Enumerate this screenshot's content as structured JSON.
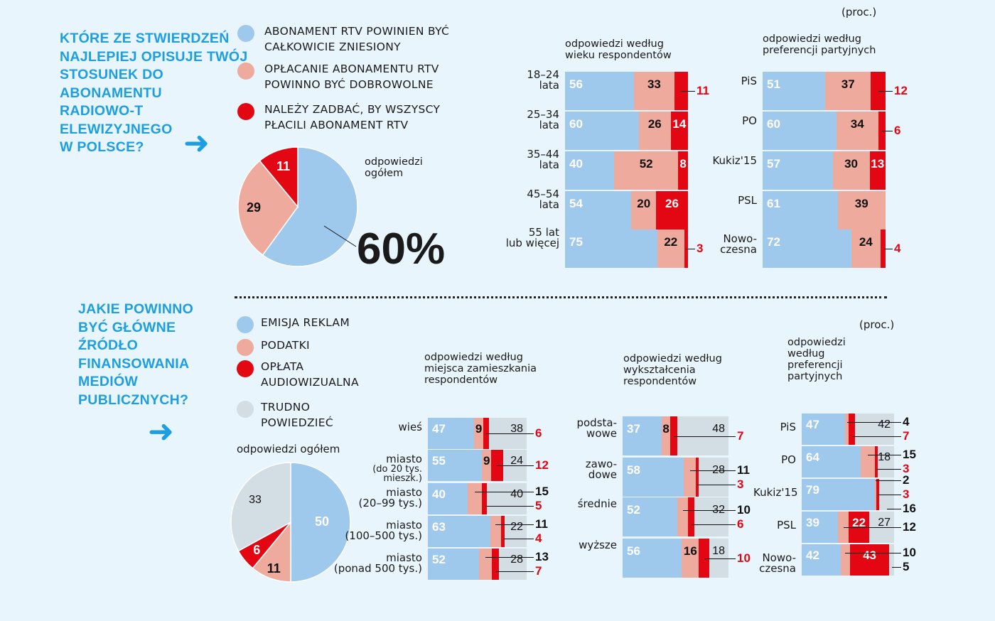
{
  "colors": {
    "blue": "#9fc9ec",
    "pink": "#eeaa9c",
    "red": "#e30613",
    "gray": "#d3dde4",
    "accent": "#1d9ee0"
  },
  "section1": {
    "question": [
      "KTÓRE ZE STWIERDZEŃ",
      "NAJLEPIEJ OPISUJE TWÓJ",
      "STOSUNEK DO",
      "ABONAMENTU",
      "RADIOWO-T",
      "ELEWIZYJNEGO",
      "W POLSCE?"
    ],
    "legend": [
      {
        "lines": [
          "ABONAMENT RTV POWINIEN BYĆ",
          "CAŁKOWICIE ZNIESIONY"
        ],
        "color": "blue"
      },
      {
        "lines": [
          "OPŁACANIE ABONAMENTU RTV",
          "POWINNO BYĆ DOBROWOLNE"
        ],
        "color": "pink"
      },
      {
        "lines": [
          "NALEŻY ZADBAĆ, BY WSZYSCY",
          "PŁACILI ABONAMENT RTV"
        ],
        "color": "red"
      }
    ],
    "unit": "(proc.)",
    "pie_label": [
      "odpowiedzi",
      "ogółem"
    ],
    "big_value": "60%"
  },
  "section2": {
    "question": [
      "JAKIE POWINNO",
      "BYĆ GŁÓWNE",
      "ŹRÓDŁO",
      "FINANSOWANIA",
      "MEDIÓW",
      "PUBLICZNYCH?"
    ],
    "legend": [
      {
        "lines": [
          "EMISJA REKLAM"
        ],
        "color": "blue"
      },
      {
        "lines": [
          "PODATKI"
        ],
        "color": "pink"
      },
      {
        "lines": [
          "OPŁATA",
          "AUDIOWIZUALNA"
        ],
        "color": "red"
      },
      {
        "lines": [
          "TRUDNO",
          "POWIEDZIEĆ"
        ],
        "color": "gray"
      }
    ],
    "unit": "(proc.)",
    "pie_label": "odpowiedzi ogółem"
  },
  "chart_data": [
    {
      "id": "pie1",
      "type": "pie",
      "title": "odpowiedzi ogółem",
      "categories": [
        "ABONAMENT RTV POWINIEN BYĆ CAŁKOWICIE ZNIESIONY",
        "OPŁACANIE ABONAMENTU RTV POWINNO BYĆ DOBROWOLNE",
        "NALEŻY ZADBAĆ, BY WSZYSCY PŁACILI ABONAMENT RTV"
      ],
      "values": [
        60,
        29,
        11
      ],
      "colors": [
        "blue",
        "pink",
        "red"
      ]
    },
    {
      "id": "age",
      "type": "bar",
      "stacked": true,
      "orientation": "horizontal",
      "title": [
        "odpowiedzi według",
        "wieku respondentów"
      ],
      "categories": [
        [
          "18–24",
          "lata"
        ],
        [
          "25–34",
          "lata"
        ],
        [
          "35–44",
          "lata"
        ],
        [
          "45–54",
          "lata"
        ],
        [
          "55 lat",
          "lub więcej"
        ]
      ],
      "series": [
        {
          "color": "blue",
          "values": [
            56,
            60,
            40,
            54,
            75
          ]
        },
        {
          "color": "pink",
          "values": [
            33,
            26,
            52,
            20,
            22
          ]
        },
        {
          "color": "red",
          "values": [
            11,
            14,
            8,
            26,
            3
          ]
        }
      ]
    },
    {
      "id": "party1",
      "type": "bar",
      "stacked": true,
      "orientation": "horizontal",
      "title": [
        "odpowiedzi według",
        "preferencji partyjnych"
      ],
      "categories": [
        [
          "PiS"
        ],
        [
          "PO"
        ],
        [
          "Kukiz'15"
        ],
        [
          "PSL"
        ],
        [
          "Nowo-",
          "czesna"
        ]
      ],
      "series": [
        {
          "color": "blue",
          "values": [
            51,
            60,
            57,
            61,
            72
          ]
        },
        {
          "color": "pink",
          "values": [
            37,
            34,
            30,
            39,
            24
          ]
        },
        {
          "color": "red",
          "values": [
            12,
            6,
            13,
            0,
            4
          ]
        }
      ]
    },
    {
      "id": "pie2",
      "type": "pie",
      "title": "odpowiedzi ogółem",
      "categories": [
        "EMISJA REKLAM",
        "PODATKI",
        "OPŁATA AUDIOWIZUALNA",
        "TRUDNO POWIEDZIEĆ"
      ],
      "values": [
        50,
        11,
        6,
        33
      ],
      "colors": [
        "blue",
        "pink",
        "red",
        "gray"
      ]
    },
    {
      "id": "place",
      "type": "bar",
      "stacked": true,
      "orientation": "horizontal",
      "title": [
        "odpowiedzi według",
        "miejsca zamieszkania",
        "respondentów"
      ],
      "categories": [
        [
          "wieś"
        ],
        [
          "miasto",
          "(do 20 tys.",
          "mieszk.)"
        ],
        [
          "miasto",
          "(20–99 tys.)"
        ],
        [
          "miasto",
          "(100–500 tys.)"
        ],
        [
          "miasto",
          "(ponad 500 tys.)"
        ]
      ],
      "series": [
        {
          "color": "blue",
          "values": [
            47,
            55,
            40,
            63,
            52
          ]
        },
        {
          "color": "pink",
          "values": [
            9,
            9,
            15,
            11,
            13
          ]
        },
        {
          "color": "red",
          "values": [
            6,
            12,
            5,
            4,
            7
          ]
        },
        {
          "color": "gray",
          "values": [
            38,
            24,
            40,
            22,
            28
          ]
        }
      ]
    },
    {
      "id": "edu",
      "type": "bar",
      "stacked": true,
      "orientation": "horizontal",
      "title": [
        "odpowiedzi według",
        "wykształcenia",
        "respondentów"
      ],
      "categories": [
        [
          "podsta-",
          "wowe"
        ],
        [
          "zawo-",
          "dowe"
        ],
        [
          "średnie"
        ],
        [
          "wyższe"
        ]
      ],
      "series": [
        {
          "color": "blue",
          "values": [
            37,
            58,
            52,
            56
          ]
        },
        {
          "color": "pink",
          "values": [
            8,
            11,
            10,
            16
          ]
        },
        {
          "color": "red",
          "values": [
            7,
            3,
            6,
            10
          ]
        },
        {
          "color": "gray",
          "values": [
            48,
            28,
            32,
            18
          ]
        }
      ]
    },
    {
      "id": "party2",
      "type": "bar",
      "stacked": true,
      "orientation": "horizontal",
      "title": [
        "odpowiedzi",
        "według",
        "preferencji",
        "partyjnych"
      ],
      "categories": [
        [
          "PiS"
        ],
        [
          "PO"
        ],
        [
          "Kukiz'15"
        ],
        [
          "PSL"
        ],
        [
          "Nowo-",
          "czesna"
        ]
      ],
      "series": [
        {
          "color": "blue",
          "values": [
            47,
            64,
            79,
            39,
            42
          ]
        },
        {
          "color": "pink",
          "values": [
            4,
            15,
            2,
            12,
            10
          ]
        },
        {
          "color": "red",
          "values": [
            7,
            3,
            3,
            22,
            43
          ]
        },
        {
          "color": "gray",
          "values": [
            42,
            18,
            16,
            27,
            5
          ]
        }
      ]
    }
  ]
}
